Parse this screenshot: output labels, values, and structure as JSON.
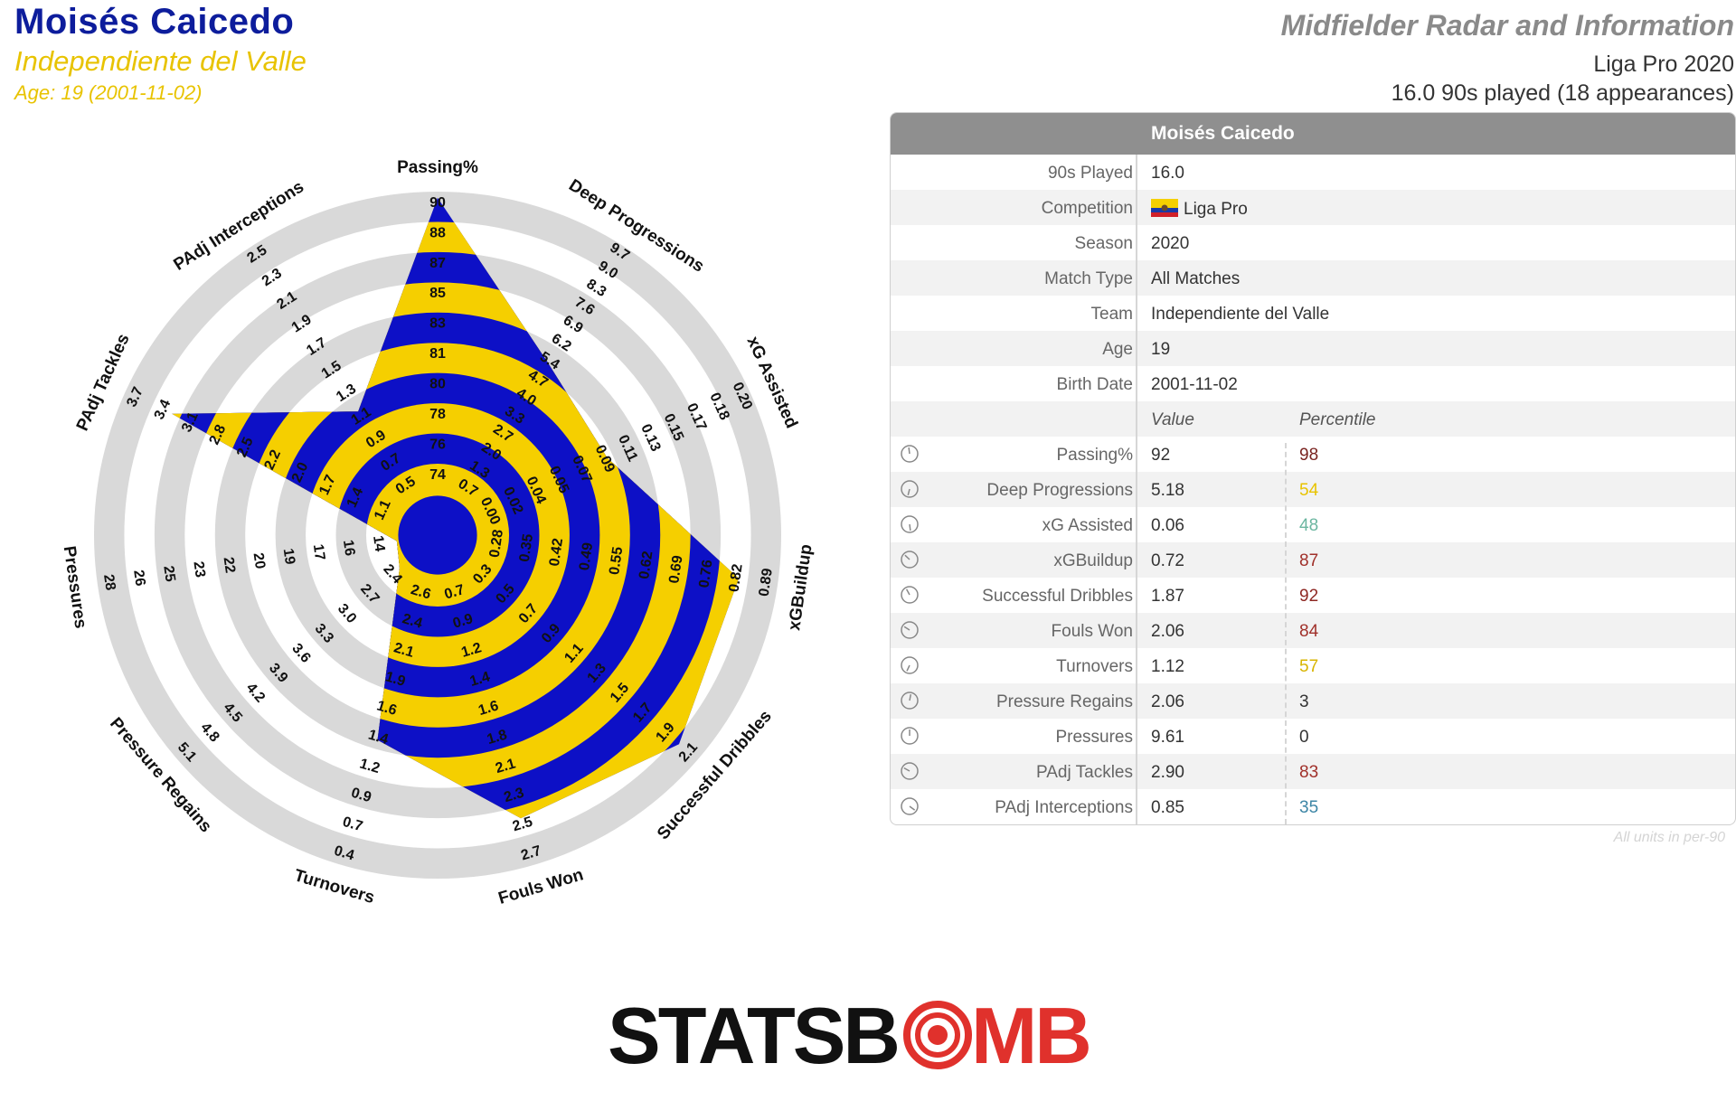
{
  "header": {
    "player_name": "Moisés Caicedo",
    "club": "Independiente del Valle",
    "age_line": "Age: 19 (2001-11-02)",
    "chart_title": "Midfielder Radar and Information",
    "season_line": "Liga Pro 2020",
    "played_line": "16.0 90s played (18 appearances)"
  },
  "colors": {
    "blue": "#0d10c6",
    "yellow": "#f5cf00",
    "ring_grey": "#d9d9d9",
    "header_grey": "#8f8f8f"
  },
  "chart_data": {
    "type": "radar",
    "center_disc_ratio": 0.12,
    "axes": [
      {
        "label": "Passing%",
        "ticks": [
          "74",
          "76",
          "78",
          "80",
          "81",
          "83",
          "85",
          "87",
          "88",
          "90"
        ],
        "percentile": 98,
        "display_label": "Passing%"
      },
      {
        "label": "Deep Progressions",
        "ticks": [
          "0.7",
          "1.3",
          "2.0",
          "2.7",
          "3.3",
          "4.0",
          "4.7",
          "5.4",
          "6.2",
          "6.9",
          "7.6",
          "8.3",
          "9.0",
          "9.7"
        ],
        "percentile": 54
      },
      {
        "label": "xG Assisted",
        "ticks": [
          "0.00",
          "0.02",
          "0.04",
          "0.05",
          "0.07",
          "0.09",
          "0.11",
          "0.13",
          "0.15",
          "0.17",
          "0.18",
          "0.20"
        ],
        "percentile": 48
      },
      {
        "label": "xGBuildup",
        "ticks": [
          "0.28",
          "0.35",
          "0.42",
          "0.49",
          "0.55",
          "0.62",
          "0.69",
          "0.76",
          "0.82",
          "0.89"
        ],
        "percentile": 87
      },
      {
        "label": "Successful Dribbles",
        "ticks": [
          "0.3",
          "0.5",
          "0.7",
          "0.9",
          "1.1",
          "1.3",
          "1.5",
          "1.7",
          "1.9",
          "2.1"
        ],
        "percentile": 92
      },
      {
        "label": "Fouls Won",
        "ticks": [
          "0.7",
          "0.9",
          "1.2",
          "1.4",
          "1.6",
          "1.8",
          "2.1",
          "2.3",
          "2.5",
          "2.7"
        ],
        "percentile": 84
      },
      {
        "label": "Turnovers",
        "ticks": [
          "2.6",
          "2.4",
          "2.1",
          "1.9",
          "1.6",
          "1.4",
          "1.2",
          "0.9",
          "0.7",
          "0.4"
        ],
        "percentile": 57
      },
      {
        "label": "Pressure Regains",
        "ticks": [
          "2.4",
          "2.7",
          "3.0",
          "3.3",
          "3.6",
          "3.9",
          "4.2",
          "4.5",
          "4.8",
          "5.1"
        ],
        "percentile": 3
      },
      {
        "label": "Pressures",
        "ticks": [
          "14",
          "16",
          "17",
          "19",
          "20",
          "22",
          "23",
          "25",
          "26",
          "28"
        ],
        "percentile": 0
      },
      {
        "label": "PAdj Tackles",
        "ticks": [
          "1.1",
          "1.4",
          "1.7",
          "2.0",
          "2.2",
          "2.5",
          "2.8",
          "3.1",
          "3.4",
          "3.7"
        ],
        "percentile": 83
      },
      {
        "label": "PAdj Interceptions",
        "ticks": [
          "0.5",
          "0.7",
          "0.9",
          "1.1",
          "1.3",
          "1.5",
          "1.7",
          "1.9",
          "2.1",
          "2.3",
          "2.5"
        ],
        "percentile": 35
      }
    ]
  },
  "table": {
    "header_name": "Moisés Caicedo",
    "info_rows": [
      {
        "label": "90s Played",
        "value": "16.0"
      },
      {
        "label": "Competition",
        "value": "Liga Pro",
        "flag": true
      },
      {
        "label": "Season",
        "value": "2020"
      },
      {
        "label": "Match Type",
        "value": "All Matches"
      },
      {
        "label": "Team",
        "value": "Independiente del Valle"
      },
      {
        "label": "Age",
        "value": "19"
      },
      {
        "label": "Birth Date",
        "value": "2001-11-02"
      }
    ],
    "col_value": "Value",
    "col_percentile": "Percentile",
    "stat_rows": [
      {
        "label": "Passing%",
        "value": "92",
        "percentile": "98",
        "color": "#7a2420",
        "pct_num": 98
      },
      {
        "label": "Deep Progressions",
        "value": "5.18",
        "percentile": "54",
        "color": "#e8c300",
        "pct_num": 54
      },
      {
        "label": "xG Assisted",
        "value": "0.06",
        "percentile": "48",
        "color": "#6bb6a0",
        "pct_num": 48
      },
      {
        "label": "xGBuildup",
        "value": "0.72",
        "percentile": "87",
        "color": "#a0302a",
        "pct_num": 87
      },
      {
        "label": "Successful Dribbles",
        "value": "1.87",
        "percentile": "92",
        "color": "#8e2823",
        "pct_num": 92
      },
      {
        "label": "Fouls Won",
        "value": "2.06",
        "percentile": "84",
        "color": "#a0302a",
        "pct_num": 84
      },
      {
        "label": "Turnovers",
        "value": "1.12",
        "percentile": "57",
        "color": "#d8b400",
        "pct_num": 57
      },
      {
        "label": "Pressure Regains",
        "value": "2.06",
        "percentile": "3",
        "color": "#333333",
        "pct_num": 3
      },
      {
        "label": "Pressures",
        "value": "9.61",
        "percentile": "0",
        "color": "#333333",
        "pct_num": 0
      },
      {
        "label": "PAdj Tackles",
        "value": "2.90",
        "percentile": "83",
        "color": "#a0302a",
        "pct_num": 83
      },
      {
        "label": "PAdj Interceptions",
        "value": "0.85",
        "percentile": "35",
        "color": "#3d86a6",
        "pct_num": 35
      }
    ],
    "units_note": "All units in per-90"
  },
  "logo": {
    "text_left": "STATSB",
    "text_right": "MB"
  }
}
